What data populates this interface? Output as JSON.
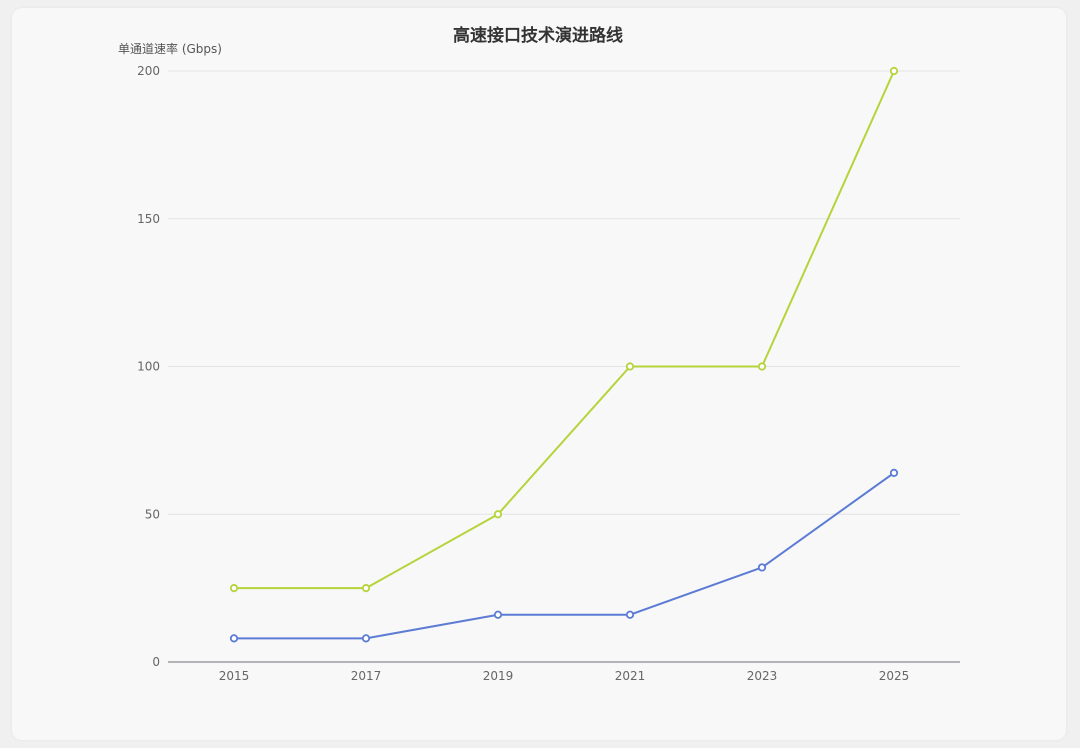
{
  "chart_data": {
    "type": "line",
    "title": "高速接口技术演进路线",
    "ylabel": "单通道速率 (Gbps)",
    "xlabel": "",
    "categories": [
      "2015",
      "2017",
      "2019",
      "2021",
      "2023",
      "2025"
    ],
    "ylim": [
      0,
      200
    ],
    "yticks": [
      0,
      50,
      100,
      150,
      200
    ],
    "grid": true,
    "series": [
      {
        "color": "#b5d43b",
        "values": [
          25,
          25,
          50,
          100,
          100,
          200
        ]
      },
      {
        "color": "#5b7bd5",
        "values": [
          8,
          8,
          16,
          16,
          32,
          64
        ]
      }
    ]
  }
}
